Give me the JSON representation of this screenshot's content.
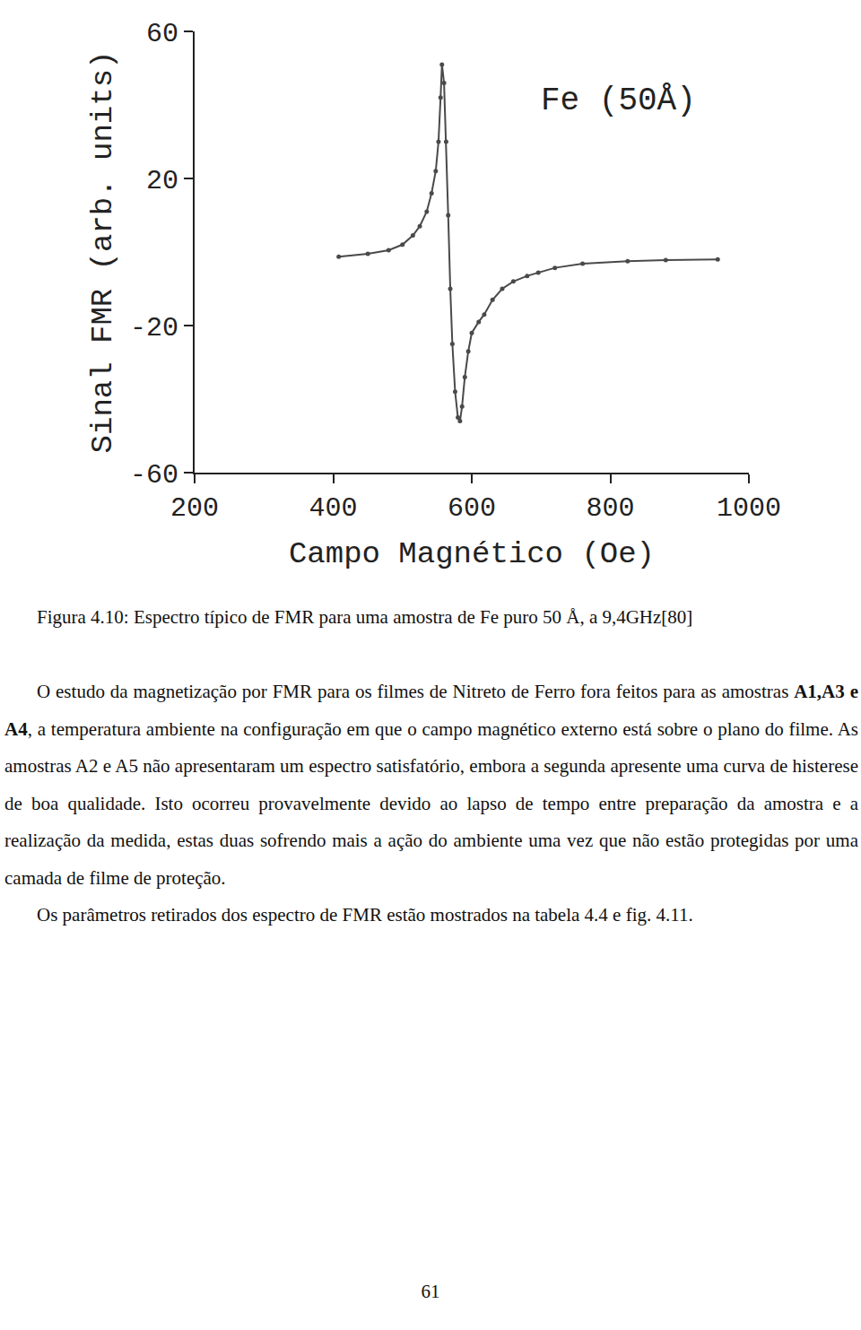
{
  "chart_data": {
    "type": "line",
    "x_label": "Campo Magnético (Oe)",
    "y_label": "Sinal FMR (arb. units)",
    "annotations": [
      {
        "text": "Fe (50Å)",
        "x": 812,
        "y": 41
      }
    ],
    "x": [
      408,
      450,
      480,
      500,
      515,
      525,
      535,
      542,
      548,
      552,
      555,
      557,
      560,
      563,
      566,
      569,
      572,
      576,
      580,
      583,
      586,
      590,
      595,
      600,
      610,
      618,
      630,
      644,
      660,
      680,
      696,
      720,
      760,
      825,
      880,
      955
    ],
    "values": [
      -1.3,
      -0.5,
      0.5,
      2,
      4.5,
      7,
      11,
      16,
      22,
      30,
      42,
      51,
      46,
      30,
      10,
      -10,
      -25,
      -38,
      -45,
      -46,
      -42,
      -34,
      -27,
      -22,
      -19,
      -17,
      -13,
      -10,
      -8,
      -6.5,
      -5.6,
      -4.3,
      -3.2,
      -2.5,
      -2.2,
      -2
    ],
    "xlim": [
      200,
      1000
    ],
    "ylim": [
      -60,
      60
    ],
    "xticks": [
      200,
      400,
      600,
      800,
      1000
    ],
    "yticks": [
      -60,
      -20,
      20,
      60
    ],
    "grid": false,
    "color": "#4a4a4a",
    "marker": "circle",
    "line_style": "solid"
  },
  "document": {
    "caption": "Figura 4.10: Espectro típico de FMR para uma amostra de Fe puro 50 Å, a 9,4GHz[80]",
    "paragraphs": [
      [
        {
          "text": "O estudo da magnetização por FMR para os filmes de Nitreto de Ferro fora feitos para as amostras "
        },
        {
          "text": "A1,A3 e A4",
          "bold": true
        },
        {
          "text": ", a temperatura ambiente na configuração em que o campo magnético externo está sobre o plano do filme. As amostras A2 e A5 não apresentaram um espectro satisfatório, embora a segunda apresente uma curva de histerese de boa qualidade. Isto ocorreu provavelmente devido ao lapso de tempo entre preparação da amostra e a realização da medida, estas duas sofrendo mais a ação do ambiente uma vez que não estão protegidas por uma camada de filme de proteção."
        }
      ],
      [
        {
          "text": "Os parâmetros retirados dos espectro de FMR estão mostrados na tabela 4.4 e fig. 4.11."
        }
      ]
    ],
    "page_number": "61"
  }
}
